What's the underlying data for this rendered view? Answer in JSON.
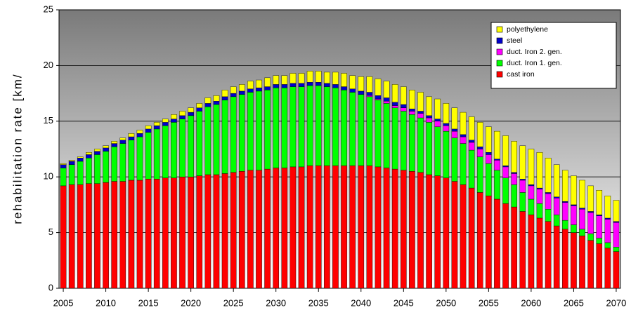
{
  "chart_data": {
    "type": "stacked_bar",
    "y_label": "rehabilitation rate [km/",
    "categories": [
      "2005",
      null,
      null,
      null,
      null,
      "2010",
      null,
      null,
      null,
      null,
      "2015",
      null,
      null,
      null,
      null,
      "2020",
      null,
      null,
      null,
      null,
      "2025",
      null,
      null,
      null,
      null,
      "2030",
      null,
      null,
      null,
      null,
      "2035",
      null,
      null,
      null,
      null,
      "2040",
      null,
      null,
      null,
      null,
      "2045",
      null,
      null,
      null,
      null,
      "2050",
      null,
      null,
      null,
      null,
      "2055",
      null,
      null,
      null,
      null,
      "2060",
      null,
      null,
      null,
      null,
      "2065",
      null,
      null,
      null,
      null,
      "2070"
    ],
    "ylim": [
      0,
      25
    ],
    "yticks": [
      0,
      5,
      10,
      15,
      20,
      25
    ],
    "grid": true,
    "legend": "upper right",
    "series": [
      {
        "name": "cast iron",
        "color": "#ff0000",
        "values": [
          9.2,
          9.3,
          9.3,
          9.4,
          9.4,
          9.5,
          9.6,
          9.6,
          9.7,
          9.7,
          9.8,
          9.8,
          9.9,
          9.9,
          10.0,
          10.0,
          10.1,
          10.2,
          10.2,
          10.3,
          10.4,
          10.5,
          10.6,
          10.6,
          10.7,
          10.8,
          10.8,
          10.9,
          10.9,
          11.0,
          11.0,
          11.0,
          11.0,
          11.0,
          11.0,
          11.0,
          11.0,
          10.9,
          10.8,
          10.7,
          10.6,
          10.5,
          10.4,
          10.2,
          10.1,
          9.9,
          9.6,
          9.3,
          9.0,
          8.6,
          8.3,
          8.0,
          7.6,
          7.3,
          6.9,
          6.6,
          6.3,
          6.0,
          5.6,
          5.3,
          5.0,
          4.7,
          4.3,
          4.0,
          3.6,
          3.3
        ]
      },
      {
        "name": "duct. Iron 1. gen.",
        "color": "#00ff00",
        "values": [
          1.6,
          1.8,
          2.1,
          2.3,
          2.6,
          2.8,
          3.1,
          3.4,
          3.6,
          3.9,
          4.2,
          4.5,
          4.7,
          5.0,
          5.2,
          5.5,
          5.8,
          6.1,
          6.3,
          6.6,
          6.8,
          6.9,
          7.0,
          7.1,
          7.1,
          7.2,
          7.2,
          7.2,
          7.2,
          7.2,
          7.2,
          7.1,
          7.0,
          6.8,
          6.6,
          6.4,
          6.2,
          6.0,
          5.8,
          5.5,
          5.3,
          5.1,
          4.9,
          4.7,
          4.4,
          4.2,
          3.9,
          3.7,
          3.4,
          3.2,
          2.9,
          2.6,
          2.3,
          2.0,
          1.7,
          1.4,
          1.3,
          1.1,
          1.0,
          0.8,
          0.7,
          0.6,
          0.6,
          0.5,
          0.5,
          0.4
        ]
      },
      {
        "name": "duct. Iron 2. gen.",
        "color": "#ff00ff",
        "values": [
          0,
          0,
          0,
          0,
          0,
          0,
          0,
          0,
          0,
          0,
          0,
          0,
          0,
          0,
          0,
          0,
          0,
          0,
          0,
          0,
          0,
          0,
          0,
          0,
          0,
          0,
          0,
          0,
          0,
          0,
          0,
          0,
          0,
          0,
          0,
          0,
          0.1,
          0.1,
          0.2,
          0.2,
          0.3,
          0.3,
          0.4,
          0.4,
          0.5,
          0.5,
          0.6,
          0.6,
          0.7,
          0.7,
          0.8,
          0.9,
          1.0,
          1.0,
          1.1,
          1.2,
          1.3,
          1.4,
          1.5,
          1.6,
          1.7,
          1.8,
          1.9,
          2.0,
          2.1,
          2.2
        ]
      },
      {
        "name": "steel",
        "color": "#0000cc",
        "values": [
          0.3,
          0.3,
          0.3,
          0.3,
          0.3,
          0.3,
          0.3,
          0.3,
          0.3,
          0.3,
          0.3,
          0.3,
          0.3,
          0.3,
          0.3,
          0.3,
          0.3,
          0.3,
          0.3,
          0.3,
          0.3,
          0.3,
          0.3,
          0.3,
          0.3,
          0.3,
          0.3,
          0.3,
          0.3,
          0.3,
          0.3,
          0.3,
          0.3,
          0.3,
          0.3,
          0.3,
          0.3,
          0.3,
          0.3,
          0.3,
          0.3,
          0.2,
          0.2,
          0.2,
          0.2,
          0.2,
          0.2,
          0.2,
          0.2,
          0.2,
          0.2,
          0.1,
          0.1,
          0.1,
          0.1,
          0.1,
          0.1,
          0.1,
          0.1,
          0.1,
          0.1,
          0.1,
          0.1,
          0.1,
          0.1,
          0.1
        ]
      },
      {
        "name": "polyethylene",
        "color": "#ffff00",
        "values": [
          0.1,
          0.1,
          0.1,
          0.2,
          0.2,
          0.2,
          0.2,
          0.2,
          0.3,
          0.3,
          0.3,
          0.3,
          0.3,
          0.4,
          0.4,
          0.4,
          0.4,
          0.5,
          0.5,
          0.6,
          0.6,
          0.6,
          0.7,
          0.7,
          0.8,
          0.8,
          0.8,
          0.9,
          0.9,
          1.0,
          1.0,
          1.0,
          1.1,
          1.2,
          1.2,
          1.3,
          1.4,
          1.5,
          1.5,
          1.6,
          1.6,
          1.7,
          1.7,
          1.7,
          1.8,
          1.8,
          1.9,
          2.0,
          2.1,
          2.2,
          2.3,
          2.5,
          2.7,
          2.8,
          3.0,
          3.2,
          3.2,
          3.1,
          2.9,
          2.8,
          2.6,
          2.5,
          2.3,
          2.2,
          2.0,
          1.9
        ]
      }
    ]
  }
}
